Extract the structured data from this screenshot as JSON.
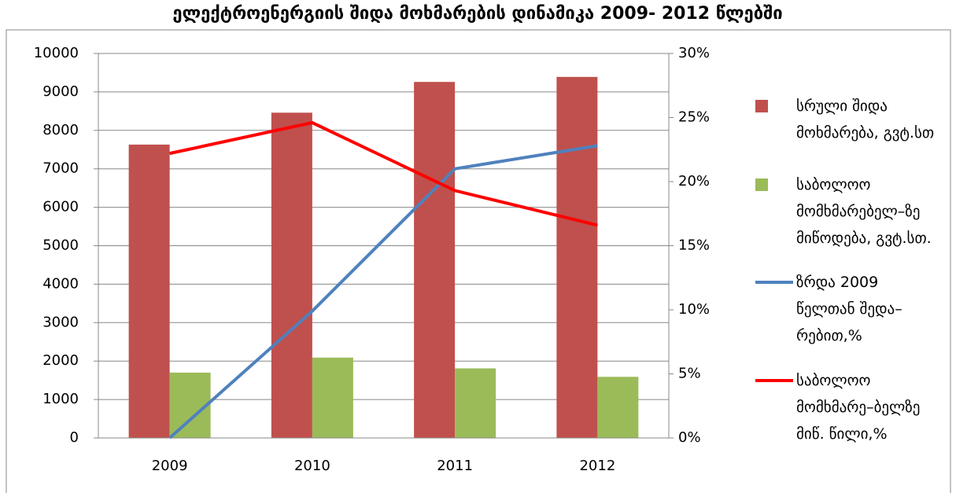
{
  "chart_data": {
    "type": "bar_line",
    "title": "ელექტროენერგიის შიდა მოხმარების დინამიკა 2009- 2012 წლებში",
    "categories": [
      "2009",
      "2010",
      "2011",
      "2012"
    ],
    "series": [
      {
        "name": "სრული შიდა მოხმარება, გვტ.სთ",
        "color": "#c0504d",
        "type": "bar",
        "values": [
          7630,
          8460,
          9260,
          9390
        ]
      },
      {
        "name": "საბოლოო მომხმარებელ–ზე მიწოდება, გვტ.სთ.",
        "color": "#9bbb59",
        "type": "bar",
        "values": [
          1700,
          2090,
          1810,
          1590
        ]
      },
      {
        "name": "ზრდა 2009 წელთან შედა–რებით,%",
        "color": "#4f81bd",
        "type": "line",
        "axis": "y2",
        "values": [
          0,
          9.9,
          21,
          22.8
        ]
      },
      {
        "name": "საბოლოო მომხმარე–ბელზე მიწ. წილი,%",
        "color": "#ff0000",
        "type": "line",
        "axis": "y2",
        "values": [
          22.2,
          24.6,
          19.3,
          16.6
        ]
      }
    ],
    "ylim": [
      0,
      10000
    ],
    "yticks": [
      0,
      1000,
      2000,
      3000,
      4000,
      5000,
      6000,
      7000,
      8000,
      9000,
      10000
    ],
    "y2lim": [
      0,
      30
    ],
    "y2ticks": [
      {
        "value": 0,
        "label": "0%"
      },
      {
        "value": 5,
        "label": "5%"
      },
      {
        "value": 10,
        "label": "10%"
      },
      {
        "value": 15,
        "label": "15%"
      },
      {
        "value": 20,
        "label": "20%"
      },
      {
        "value": 25,
        "label": "25%"
      },
      {
        "value": 30,
        "label": "30%"
      }
    ],
    "grid": true,
    "legend": "right"
  }
}
